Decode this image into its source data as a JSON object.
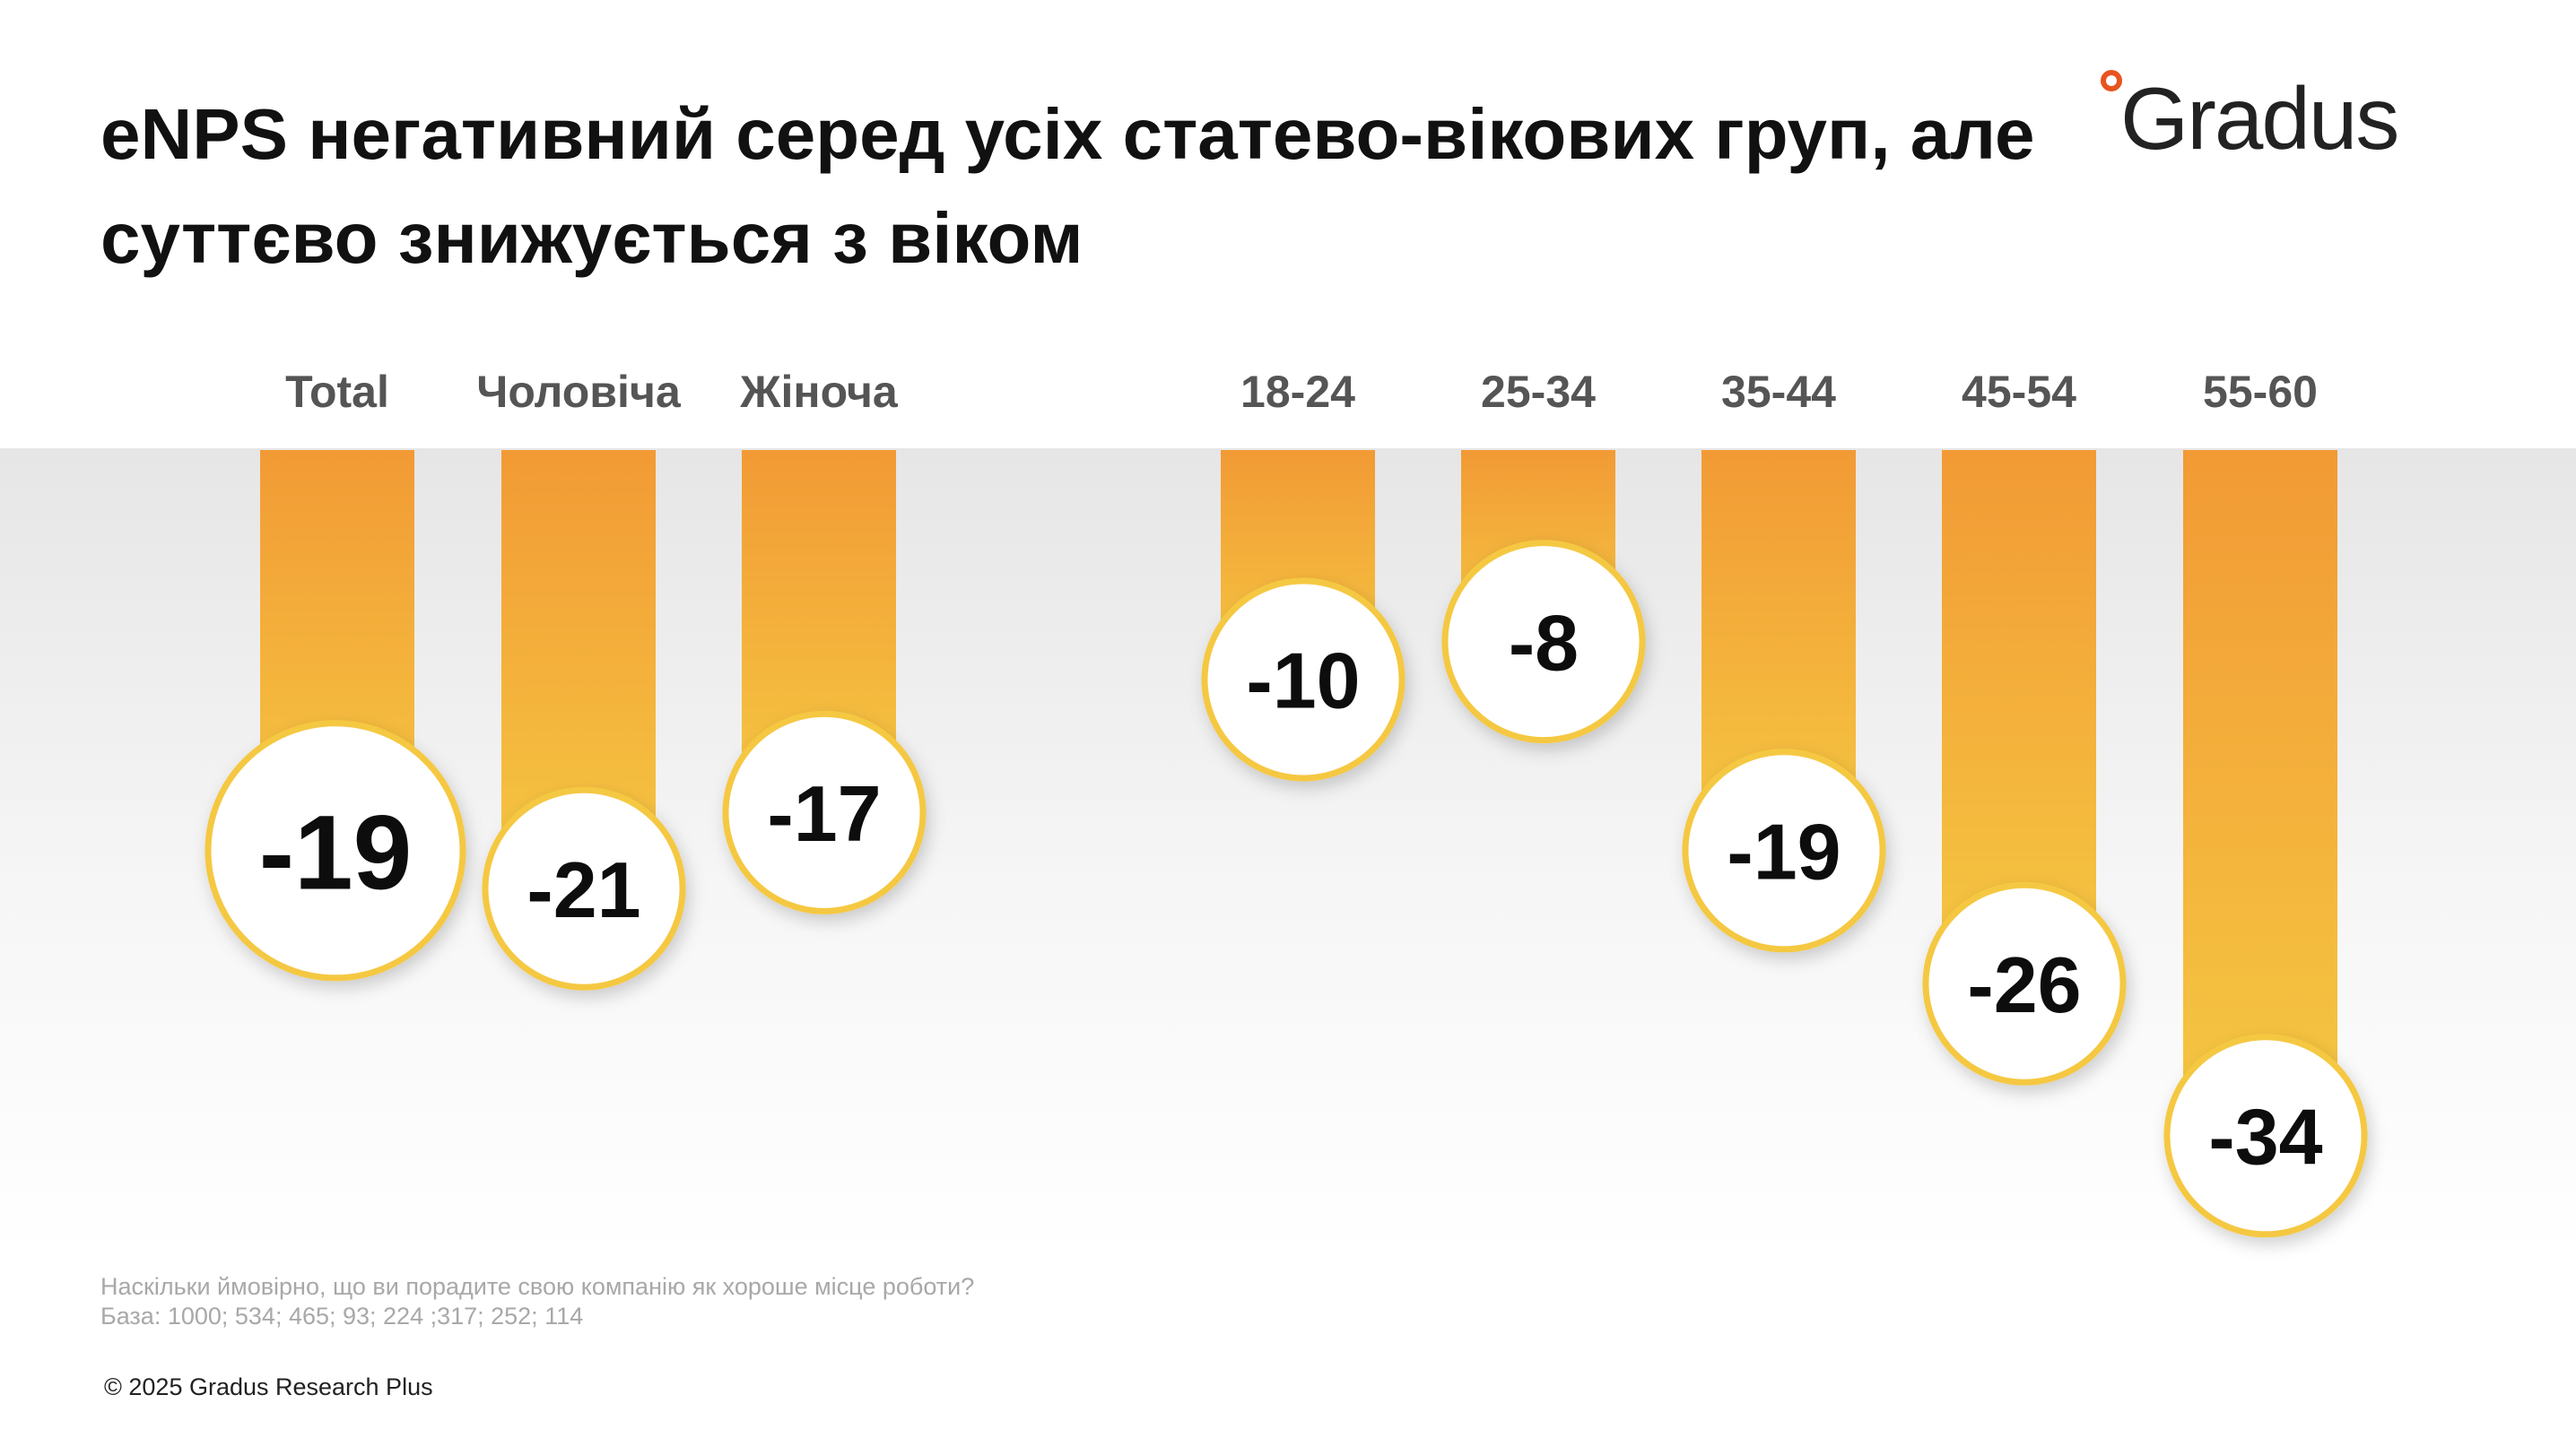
{
  "title": "eNPS негативний серед усіх статево-вікових груп, але суттєво знижується з віком",
  "logo": {
    "text": "Gradus",
    "accent_color": "#e8531e"
  },
  "footnote": {
    "question": "Наскільки ймовірно, що ви порадите свою компанію як хороше місце роботи?",
    "base": "База: 1000; 534; 465; 93; 224 ;317; 252; 114"
  },
  "copyright": "© 2025 Gradus Research Plus",
  "colors": {
    "bar_top": "#f29a35",
    "bar_bottom": "#f5c842",
    "circle_border": "#f5c842",
    "label": "#555555"
  },
  "chart_data": {
    "type": "bar",
    "categories": [
      "Total",
      "Чоловіча",
      "Жіноча",
      "18-24",
      "25-34",
      "35-44",
      "45-54",
      "55-60"
    ],
    "values": [
      -19,
      -21,
      -17,
      -10,
      -8,
      -19,
      -26,
      -34
    ],
    "data_labels": [
      "-19",
      "-21",
      "-17",
      "-10",
      "-8",
      "-19",
      "-26",
      "-34"
    ],
    "groups": [
      {
        "name": "",
        "categories": [
          "Total",
          "Чоловіча",
          "Жіноча"
        ]
      },
      {
        "name": "",
        "categories": [
          "18-24",
          "25-34",
          "35-44",
          "45-54",
          "55-60"
        ]
      }
    ],
    "ylim": [
      -34,
      0
    ],
    "grid": false
  }
}
